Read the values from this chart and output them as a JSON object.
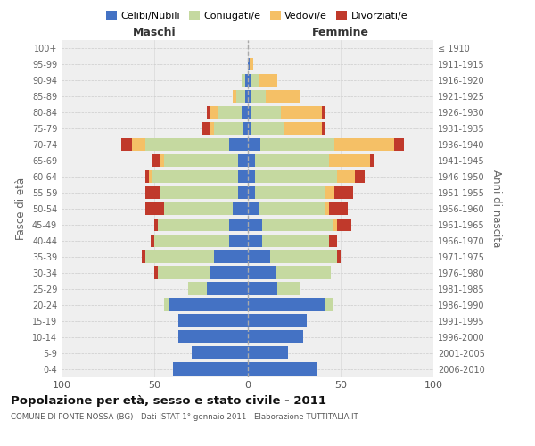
{
  "age_groups": [
    "0-4",
    "5-9",
    "10-14",
    "15-19",
    "20-24",
    "25-29",
    "30-34",
    "35-39",
    "40-44",
    "45-49",
    "50-54",
    "55-59",
    "60-64",
    "65-69",
    "70-74",
    "75-79",
    "80-84",
    "85-89",
    "90-94",
    "95-99",
    "100+"
  ],
  "birth_years": [
    "2006-2010",
    "2001-2005",
    "1996-2000",
    "1991-1995",
    "1986-1990",
    "1981-1985",
    "1976-1980",
    "1971-1975",
    "1966-1970",
    "1961-1965",
    "1956-1960",
    "1951-1955",
    "1946-1950",
    "1941-1945",
    "1936-1940",
    "1931-1935",
    "1926-1930",
    "1921-1925",
    "1916-1920",
    "1911-1915",
    "≤ 1910"
  ],
  "maschi_celibi": [
    40,
    30,
    37,
    37,
    42,
    22,
    20,
    18,
    10,
    10,
    8,
    5,
    5,
    5,
    10,
    2,
    3,
    1,
    1,
    0,
    0
  ],
  "maschi_coniugati": [
    0,
    0,
    0,
    0,
    3,
    10,
    28,
    37,
    40,
    38,
    37,
    42,
    46,
    40,
    45,
    16,
    13,
    5,
    2,
    0,
    0
  ],
  "maschi_vedovi": [
    0,
    0,
    0,
    0,
    0,
    0,
    0,
    0,
    0,
    0,
    0,
    0,
    2,
    2,
    7,
    2,
    4,
    2,
    0,
    0,
    0
  ],
  "maschi_divorziati": [
    0,
    0,
    0,
    0,
    0,
    0,
    2,
    2,
    2,
    2,
    10,
    8,
    2,
    4,
    6,
    4,
    2,
    0,
    0,
    0,
    0
  ],
  "femmine_celibi": [
    37,
    22,
    30,
    32,
    42,
    16,
    15,
    12,
    8,
    8,
    6,
    4,
    4,
    4,
    7,
    2,
    2,
    2,
    2,
    1,
    0
  ],
  "femmine_coniugati": [
    0,
    0,
    0,
    0,
    4,
    12,
    30,
    36,
    36,
    38,
    36,
    38,
    44,
    40,
    40,
    18,
    16,
    8,
    4,
    0,
    0
  ],
  "femmine_vedovi": [
    0,
    0,
    0,
    0,
    0,
    0,
    0,
    0,
    0,
    2,
    2,
    5,
    10,
    22,
    32,
    20,
    22,
    18,
    10,
    2,
    0
  ],
  "femmine_divorziati": [
    0,
    0,
    0,
    0,
    0,
    0,
    0,
    2,
    4,
    8,
    10,
    10,
    5,
    2,
    5,
    2,
    2,
    0,
    0,
    0,
    0
  ],
  "colors": {
    "celibi": "#4472c4",
    "coniugati": "#c5d9a0",
    "vedovi": "#f5c066",
    "divorziati": "#c0392b"
  },
  "xlim": 100,
  "title": "Popolazione per età, sesso e stato civile - 2011",
  "subtitle": "COMUNE DI PONTE NOSSA (BG) - Dati ISTAT 1° gennaio 2011 - Elaborazione TUTTITALIA.IT",
  "ylabel_left": "Fasce di età",
  "ylabel_right": "Anni di nascita",
  "xlabel_left": "Maschi",
  "xlabel_right": "Femmine",
  "bg_color": "#efefef",
  "grid_color": "#dddddd"
}
